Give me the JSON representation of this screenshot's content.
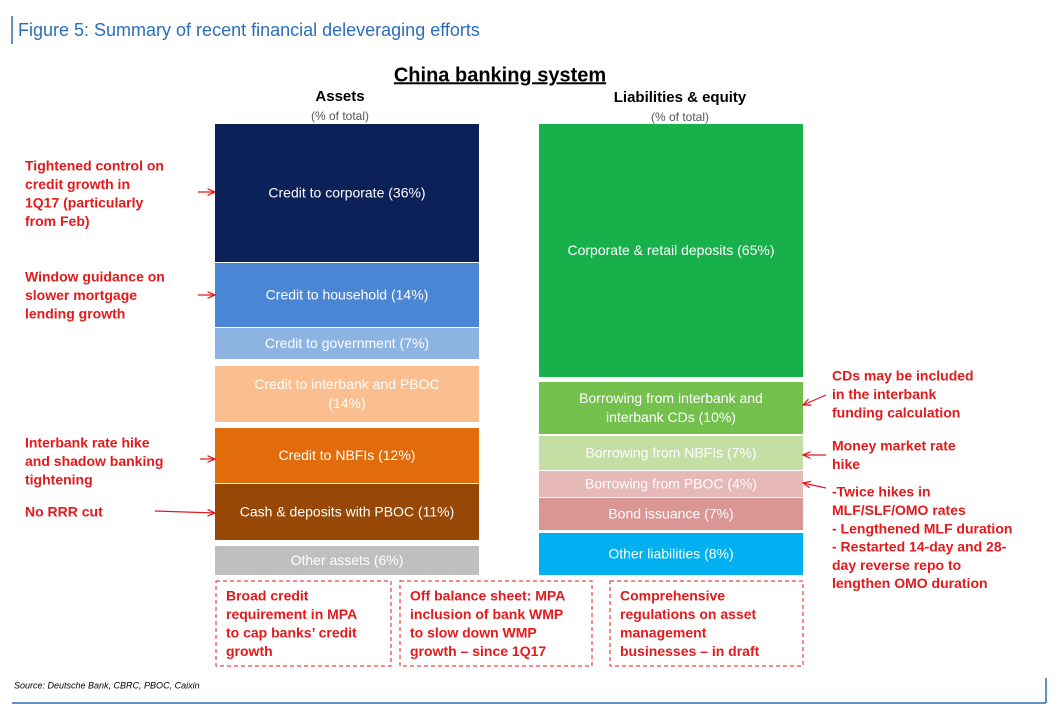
{
  "header": {
    "title": "Figure 5: Summary of recent financial deleveraging efforts"
  },
  "diagram": {
    "title": "China banking system",
    "assets": {
      "heading": "Assets",
      "unit": "(% of total)",
      "blocks": [
        [
          "Credit to corporate (36%)"
        ],
        [
          "Credit to household (14%)"
        ],
        [
          "Credit to government (7%)"
        ],
        [
          "Credit to interbank and PBOC",
          "(14%)"
        ],
        [
          "Credit to NBFIs (12%)"
        ],
        [
          "Cash & deposits with PBOC (11%)"
        ],
        [
          "Other assets (6%)"
        ]
      ]
    },
    "liabilities": {
      "heading": "Liabilities & equity",
      "unit": "(% of total)",
      "blocks": [
        [
          "Corporate & retail deposits (65%)"
        ],
        [
          "Borrowing from interbank and",
          "interbank CDs (10%)"
        ],
        [
          "Borrowing from NBFIs (7%)"
        ],
        [
          "Borrowing from PBOC (4%)"
        ],
        [
          "Bond issuance (7%)"
        ],
        [
          "Other liabilities (8%)"
        ]
      ]
    },
    "left_notes": [
      [
        "Tightened control on",
        "credit growth in",
        "1Q17 (particularly",
        "from Feb)"
      ],
      [
        "Window guidance on",
        "slower mortgage",
        "lending growth"
      ],
      [
        "Interbank rate hike",
        "and shadow banking",
        "tightening"
      ],
      [
        "No RRR cut"
      ]
    ],
    "right_notes": [
      [
        "CDs may be included",
        "in the interbank",
        "funding calculation"
      ],
      [
        "Money market rate",
        "hike"
      ],
      [
        "-Twice hikes in",
        "MLF/SLF/OMO rates",
        "- Lengthened MLF duration",
        "- Restarted 14-day and 28-",
        "day reverse repo to",
        "lengthen OMO duration"
      ]
    ],
    "boxes": [
      [
        "Broad credit",
        "requirement in MPA",
        "to cap banks’ credit",
        "growth"
      ],
      [
        "Off balance sheet: MPA",
        "inclusion of bank WMP",
        "to slow down WMP",
        "growth – since 1Q17"
      ],
      [
        "Comprehensive",
        "regulations on asset",
        "management",
        "businesses – in draft"
      ]
    ]
  },
  "footer": {
    "source": "Source: Deutsche Bank, CBRC, PBOC, Caixin"
  }
}
